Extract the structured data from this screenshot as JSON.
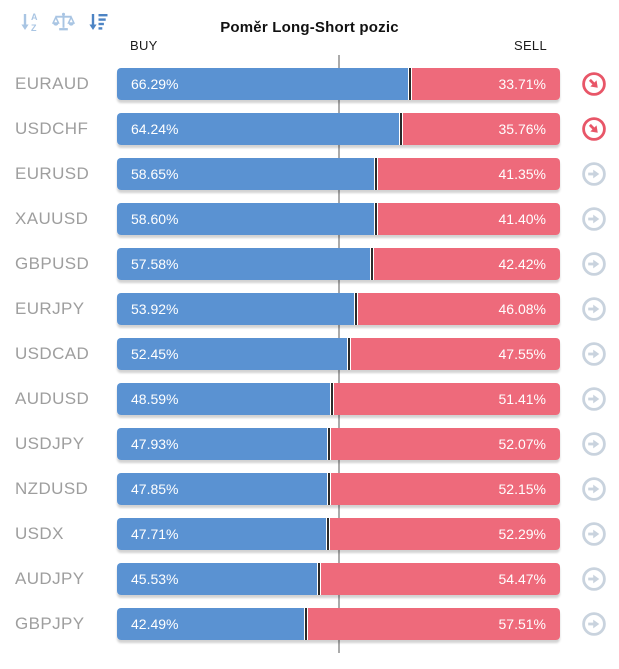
{
  "title": "Poměr Long-Short pozic",
  "header": {
    "buy_label": "BUY",
    "sell_label": "SELL"
  },
  "toolbar": {
    "sort_alpha_icon": "sort-alphabetical",
    "balance_icon": "balance-scale",
    "sort_amount_icon": "sort-by-ratio-active"
  },
  "colors": {
    "buy_bar": "#5a92d2",
    "sell_bar": "#ee6a7b",
    "separator": "#2a2a2a",
    "mid_divider": "#ababab",
    "label_gray": "#9e9e9e",
    "icon_neutral": "#c9d3de",
    "icon_signal": "#e85668"
  },
  "chart_data": {
    "type": "bar",
    "orientation": "horizontal-stacked",
    "title": "Poměr Long-Short pozic",
    "series_names": [
      "BUY",
      "SELL"
    ],
    "x_range": [
      0,
      100
    ],
    "midline_at": 50,
    "categories": [
      "EURAUD",
      "USDCHF",
      "EURUSD",
      "XAUUSD",
      "GBPUSD",
      "EURJPY",
      "USDCAD",
      "AUDUSD",
      "USDJPY",
      "NZDUSD",
      "USDX",
      "AUDJPY",
      "GBPJPY"
    ],
    "rows": [
      {
        "symbol": "EURAUD",
        "buy": 66.29,
        "sell": 33.71,
        "buy_label": "66.29%",
        "sell_label": "33.71%",
        "signal": "down"
      },
      {
        "symbol": "USDCHF",
        "buy": 64.24,
        "sell": 35.76,
        "buy_label": "64.24%",
        "sell_label": "35.76%",
        "signal": "down"
      },
      {
        "symbol": "EURUSD",
        "buy": 58.65,
        "sell": 41.35,
        "buy_label": "58.65%",
        "sell_label": "41.35%",
        "signal": "neutral"
      },
      {
        "symbol": "XAUUSD",
        "buy": 58.6,
        "sell": 41.4,
        "buy_label": "58.60%",
        "sell_label": "41.40%",
        "signal": "neutral"
      },
      {
        "symbol": "GBPUSD",
        "buy": 57.58,
        "sell": 42.42,
        "buy_label": "57.58%",
        "sell_label": "42.42%",
        "signal": "neutral"
      },
      {
        "symbol": "EURJPY",
        "buy": 53.92,
        "sell": 46.08,
        "buy_label": "53.92%",
        "sell_label": "46.08%",
        "signal": "neutral"
      },
      {
        "symbol": "USDCAD",
        "buy": 52.45,
        "sell": 47.55,
        "buy_label": "52.45%",
        "sell_label": "47.55%",
        "signal": "neutral"
      },
      {
        "symbol": "AUDUSD",
        "buy": 48.59,
        "sell": 51.41,
        "buy_label": "48.59%",
        "sell_label": "51.41%",
        "signal": "neutral"
      },
      {
        "symbol": "USDJPY",
        "buy": 47.93,
        "sell": 52.07,
        "buy_label": "47.93%",
        "sell_label": "52.07%",
        "signal": "neutral"
      },
      {
        "symbol": "NZDUSD",
        "buy": 47.85,
        "sell": 52.15,
        "buy_label": "47.85%",
        "sell_label": "52.15%",
        "signal": "neutral"
      },
      {
        "symbol": "USDX",
        "buy": 47.71,
        "sell": 52.29,
        "buy_label": "47.71%",
        "sell_label": "52.29%",
        "signal": "neutral"
      },
      {
        "symbol": "AUDJPY",
        "buy": 45.53,
        "sell": 54.47,
        "buy_label": "45.53%",
        "sell_label": "54.47%",
        "signal": "neutral"
      },
      {
        "symbol": "GBPJPY",
        "buy": 42.49,
        "sell": 57.51,
        "buy_label": "42.49%",
        "sell_label": "57.51%",
        "signal": "neutral"
      }
    ]
  }
}
